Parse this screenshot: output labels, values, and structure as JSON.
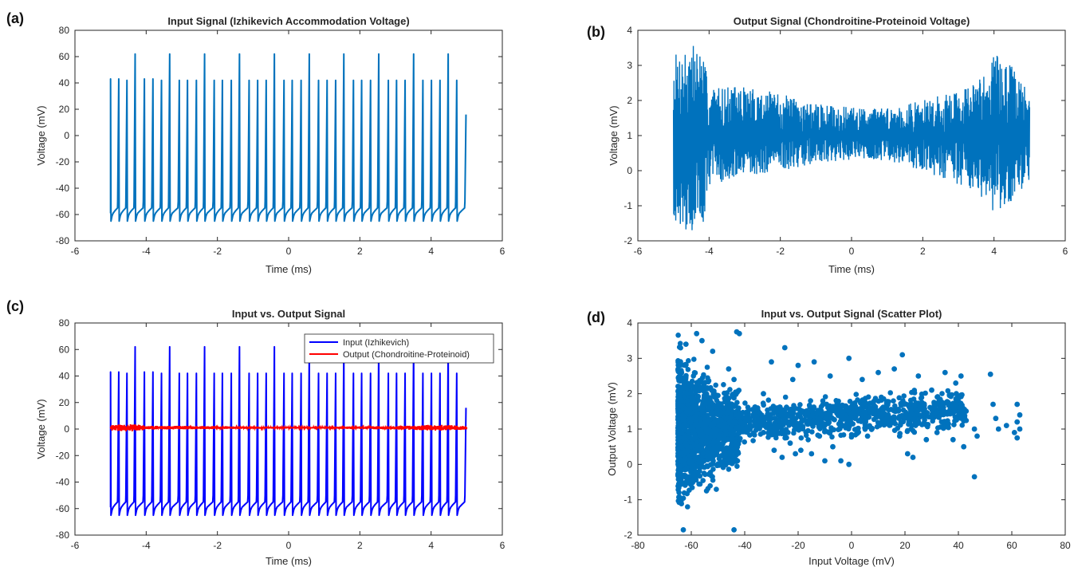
{
  "panels": [
    {
      "id": "a",
      "label": "(a)",
      "title": "Input Signal (Izhikevich Accommodation Voltage)",
      "xlabel": "Time (ms)",
      "ylabel": "Voltage (mV)",
      "xticks": [
        "-6",
        "-4",
        "-2",
        "0",
        "2",
        "4",
        "6"
      ],
      "yticks": [
        "-80",
        "-60",
        "-40",
        "-20",
        "0",
        "20",
        "40",
        "60",
        "80"
      ]
    },
    {
      "id": "b",
      "label": "(b)",
      "title": "Output Signal (Chondroitine-Proteinoid Voltage)",
      "xlabel": "Time (ms)",
      "ylabel": "Voltage (mV)",
      "xticks": [
        "-6",
        "-4",
        "-2",
        "0",
        "2",
        "4",
        "6"
      ],
      "yticks": [
        "-2",
        "-1",
        "0",
        "1",
        "2",
        "3",
        "4"
      ]
    },
    {
      "id": "c",
      "label": "(c)",
      "title": "Input vs. Output Signal",
      "xlabel": "Time (ms)",
      "ylabel": "Voltage (mV)",
      "xticks": [
        "-6",
        "-4",
        "-2",
        "0",
        "2",
        "4",
        "6"
      ],
      "yticks": [
        "-80",
        "-60",
        "-40",
        "-20",
        "0",
        "20",
        "40",
        "60",
        "80"
      ],
      "legend": [
        "Input (Izhikevich)",
        "Output (Chondroitine-Proteinoid)"
      ]
    },
    {
      "id": "d",
      "label": "(d)",
      "title": "Input vs. Output Signal (Scatter Plot)",
      "xlabel": "Input Voltage (mV)",
      "ylabel": "Output Voltage (mV)",
      "xticks": [
        "-80",
        "-60",
        "-40",
        "-20",
        "0",
        "20",
        "40",
        "60",
        "80"
      ],
      "yticks": [
        "-2",
        "-1",
        "0",
        "1",
        "2",
        "3",
        "4"
      ]
    }
  ],
  "chart_data": [
    {
      "panel": "a",
      "type": "line",
      "title": "Input Signal (Izhikevich Accommodation Voltage)",
      "xlabel": "Time (ms)",
      "ylabel": "Voltage (mV)",
      "xlim": [
        -6,
        6
      ],
      "ylim": [
        -80,
        80
      ],
      "grid": false,
      "series": [
        {
          "color": "#0072BD",
          "spike_times_ms": [
            -5.0,
            -4.77,
            -4.54,
            -4.31,
            -4.05,
            -3.81,
            -3.57,
            -3.34,
            -3.07,
            -2.84,
            -2.59,
            -2.36,
            -2.09,
            -1.86,
            -1.61,
            -1.38,
            -1.11,
            -0.87,
            -0.63,
            -0.4,
            -0.13,
            0.1,
            0.35,
            0.58,
            0.84,
            1.08,
            1.32,
            1.55,
            1.82,
            2.05,
            2.3,
            2.53,
            2.8,
            3.03,
            3.27,
            3.51,
            3.77,
            4.01,
            4.25,
            4.48,
            4.72,
            4.98
          ],
          "spike_peaks_mV": [
            43,
            43,
            42,
            62,
            43,
            43,
            42,
            62,
            42,
            42,
            42,
            62,
            42,
            42,
            42,
            62,
            42,
            42,
            42,
            62,
            42,
            42,
            42,
            62,
            42,
            42,
            42,
            62,
            42,
            42,
            42,
            62,
            42,
            42,
            42,
            62,
            42,
            42,
            42,
            62,
            42,
            16
          ],
          "trough_mV": -65,
          "resting_mV": -59
        }
      ]
    },
    {
      "panel": "b",
      "type": "line",
      "title": "Output Signal (Chondroitine-Proteinoid Voltage)",
      "xlabel": "Time (ms)",
      "ylabel": "Voltage (mV)",
      "xlim": [
        -6,
        6
      ],
      "ylim": [
        -2,
        4
      ],
      "grid": false,
      "series": [
        {
          "color": "#0072BD",
          "x_range_ms": [
            -5,
            5
          ],
          "mean_mV": 1.0,
          "envelope_time_ms": [
            -5.0,
            -4.5,
            -4.2,
            -4.0,
            -3.0,
            -2.0,
            -1.0,
            0.0,
            1.0,
            2.0,
            3.0,
            3.5,
            4.0,
            4.5,
            5.0
          ],
          "envelope_max_mV": [
            3.3,
            3.7,
            3.5,
            2.4,
            2.4,
            2.2,
            1.9,
            1.8,
            1.8,
            2.0,
            2.3,
            2.5,
            3.4,
            3.0,
            2.2
          ],
          "envelope_min_mV": [
            -1.4,
            -1.8,
            -1.7,
            -0.4,
            -0.2,
            0.0,
            0.2,
            0.3,
            0.3,
            0.0,
            -0.4,
            -0.6,
            -1.2,
            -1.0,
            -0.5
          ]
        }
      ]
    },
    {
      "panel": "c",
      "type": "line",
      "title": "Input vs. Output Signal",
      "xlabel": "Time (ms)",
      "ylabel": "Voltage (mV)",
      "xlim": [
        -6,
        6
      ],
      "ylim": [
        -80,
        80
      ],
      "grid": false,
      "legend_position": "top-right",
      "series": [
        {
          "name": "Input (Izhikevich)",
          "color": "#0000FF",
          "same_as_panel": "a"
        },
        {
          "name": "Output (Chondroitine-Proteinoid)",
          "color": "#FF0000",
          "same_as_panel": "b"
        }
      ]
    },
    {
      "panel": "d",
      "type": "scatter",
      "title": "Input vs. Output Signal (Scatter Plot)",
      "xlabel": "Input Voltage (mV)",
      "ylabel": "Output Voltage (mV)",
      "xlim": [
        -80,
        80
      ],
      "ylim": [
        -2,
        4
      ],
      "grid": false,
      "series": [
        {
          "color": "#0072BD",
          "dense_cluster": {
            "input_mV": [
              -65,
              -42
            ],
            "output_mV": [
              -1.9,
              3.8
            ]
          },
          "tail": {
            "input_mV": [
              -42,
              43
            ],
            "output_mV_center": 1.3
          },
          "points": [
            [
              -63,
              -1.85
            ],
            [
              -62,
              3.4
            ],
            [
              -58,
              3.7
            ],
            [
              -56,
              3.5
            ],
            [
              -52,
              3.2
            ],
            [
              -46,
              2.7
            ],
            [
              -44,
              2.4
            ],
            [
              -43,
              3.75
            ],
            [
              -42,
              3.7
            ],
            [
              -44,
              -1.85
            ],
            [
              -33,
              2.0
            ],
            [
              -30,
              2.9
            ],
            [
              -25,
              3.3
            ],
            [
              -22,
              2.4
            ],
            [
              -20,
              2.8
            ],
            [
              -14,
              2.9
            ],
            [
              -8,
              2.5
            ],
            [
              -1,
              3.0
            ],
            [
              4,
              2.4
            ],
            [
              10,
              2.6
            ],
            [
              16,
              2.7
            ],
            [
              19,
              3.1
            ],
            [
              25,
              2.5
            ],
            [
              30,
              2.1
            ],
            [
              35,
              2.6
            ],
            [
              39,
              2.3
            ],
            [
              41,
              2.5
            ],
            [
              -33,
              0.9
            ],
            [
              -29,
              0.4
            ],
            [
              -26,
              0.2
            ],
            [
              -23,
              0.6
            ],
            [
              -21,
              0.3
            ],
            [
              -19,
              0.4
            ],
            [
              -15,
              0.3
            ],
            [
              -12,
              0.8
            ],
            [
              -10,
              0.1
            ],
            [
              -7,
              0.5
            ],
            [
              -4,
              0.1
            ],
            [
              -1,
              0.0
            ],
            [
              6,
              0.8
            ],
            [
              18,
              0.8
            ],
            [
              21,
              0.3
            ],
            [
              23,
              0.2
            ],
            [
              28,
              0.7
            ],
            [
              32,
              0.9
            ],
            [
              38,
              0.7
            ],
            [
              42,
              0.5
            ],
            [
              46,
              1.0
            ],
            [
              46,
              -0.35
            ],
            [
              47,
              0.8
            ],
            [
              52,
              2.55
            ],
            [
              53,
              1.7
            ],
            [
              54,
              1.3
            ],
            [
              55,
              1.0
            ],
            [
              58,
              1.1
            ],
            [
              61,
              0.9
            ],
            [
              62,
              0.75
            ],
            [
              62,
              1.2
            ],
            [
              62,
              1.7
            ],
            [
              63,
              1.0
            ],
            [
              63,
              1.4
            ]
          ]
        }
      ]
    }
  ]
}
